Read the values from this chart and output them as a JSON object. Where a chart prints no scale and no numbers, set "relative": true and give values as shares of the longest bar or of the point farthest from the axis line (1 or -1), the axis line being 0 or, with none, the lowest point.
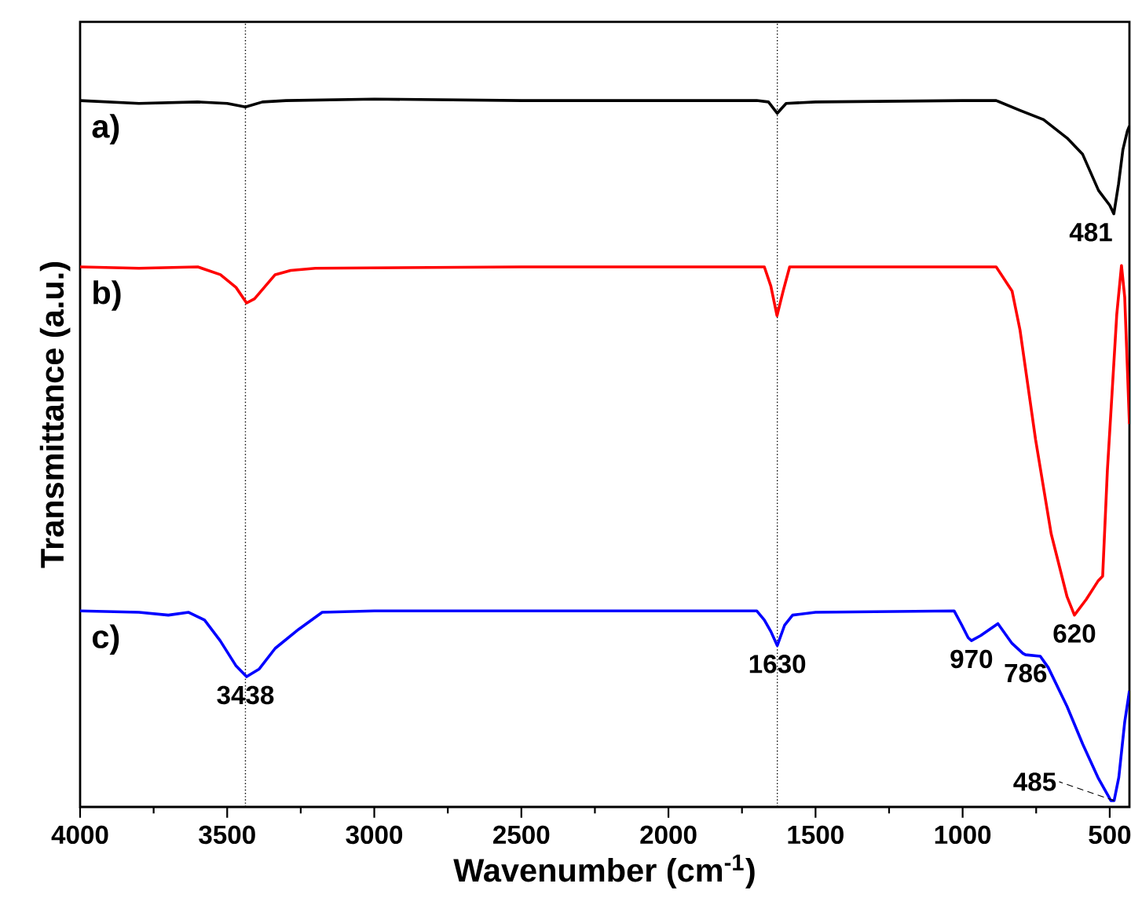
{
  "chart_data": {
    "type": "line",
    "relative": true,
    "xlabel": "Wavenumber (cm$^{-1}$)",
    "ylabel": "Transmittance (a.u.)",
    "xlim": [
      4000,
      433
    ],
    "xticks": [
      4000,
      {
        "value": 3750,
        "label": null
      },
      3500,
      {
        "value": 3250,
        "label": null
      },
      3000,
      {
        "value": 2750,
        "label": null
      },
      2500,
      {
        "value": 2250,
        "label": null
      },
      2000,
      {
        "value": 1750,
        "label": null
      },
      1500,
      {
        "value": 1250,
        "label": null
      },
      1000,
      {
        "value": 750,
        "label": null
      },
      500
    ],
    "legend": false,
    "series": [
      {
        "name": "a)",
        "color": "#000000",
        "x": [
          4000,
          3800,
          3600,
          3500,
          3438,
          3380,
          3300,
          3000,
          2500,
          2000,
          1700,
          1660,
          1630,
          1600,
          1500,
          1000,
          886,
          805,
          725,
          645,
          592,
          538,
          500,
          486,
          470,
          455,
          440,
          433
        ],
        "values": [
          0.998,
          0.994,
          0.996,
          0.994,
          0.989,
          0.996,
          0.998,
          1.0,
          0.998,
          0.998,
          0.998,
          0.996,
          0.98,
          0.994,
          0.996,
          0.998,
          0.998,
          0.984,
          0.971,
          0.945,
          0.922,
          0.871,
          0.85,
          0.838,
          0.88,
          0.929,
          0.955,
          0.962
        ]
      },
      {
        "name": "b)",
        "color": "#ff0000",
        "x": [
          4000,
          3800,
          3600,
          3523,
          3470,
          3434,
          3407,
          3337,
          3284,
          3200,
          2500,
          2000,
          1700,
          1674,
          1652,
          1631,
          1610,
          1588,
          1500,
          1000,
          886,
          832,
          805,
          752,
          699,
          645,
          620,
          580,
          540,
          524,
          508,
          492,
          476,
          460,
          449,
          440,
          433
        ],
        "values": [
          0.763,
          0.761,
          0.763,
          0.752,
          0.734,
          0.712,
          0.718,
          0.752,
          0.758,
          0.761,
          0.763,
          0.763,
          0.763,
          0.763,
          0.736,
          0.694,
          0.729,
          0.763,
          0.763,
          0.763,
          0.763,
          0.729,
          0.674,
          0.519,
          0.386,
          0.297,
          0.271,
          0.293,
          0.319,
          0.326,
          0.475,
          0.585,
          0.696,
          0.765,
          0.72,
          0.62,
          0.541
        ]
      },
      {
        "name": "c)",
        "color": "#0000ff",
        "x": [
          4000,
          3800,
          3700,
          3631,
          3577,
          3524,
          3471,
          3434,
          3391,
          3337,
          3257,
          3177,
          3000,
          2000,
          1700,
          1674,
          1652,
          1630,
          1605,
          1578,
          1500,
          1029,
          1003,
          981,
          970,
          939,
          880,
          832,
          795,
          786,
          736,
          709,
          645,
          592,
          538,
          496,
          485,
          469,
          449,
          433
        ],
        "values": [
          0.277,
          0.275,
          0.271,
          0.275,
          0.264,
          0.235,
          0.2,
          0.184,
          0.195,
          0.224,
          0.251,
          0.275,
          0.277,
          0.277,
          0.277,
          0.264,
          0.248,
          0.228,
          0.257,
          0.271,
          0.275,
          0.277,
          0.257,
          0.239,
          0.235,
          0.242,
          0.259,
          0.231,
          0.217,
          0.215,
          0.213,
          0.197,
          0.142,
          0.089,
          0.04,
          0.009,
          0.009,
          0.042,
          0.12,
          0.164
        ]
      }
    ],
    "ref_lines": [
      {
        "axis": "x",
        "value": 3438,
        "color": "#000000",
        "line_style": "dotted"
      },
      {
        "axis": "x",
        "value": 1630,
        "color": "#000000",
        "line_style": "dotted"
      }
    ],
    "annotations": [
      {
        "text": "481",
        "x": 481,
        "y": 0.838
      },
      {
        "text": "620",
        "x": 620,
        "y": 0.271
      },
      {
        "text": "3438",
        "x": 3438,
        "y": 0.184
      },
      {
        "text": "1630",
        "x": 1630,
        "y": 0.228
      },
      {
        "text": "970",
        "x": 970,
        "y": 0.235
      },
      {
        "text": "786",
        "x": 786,
        "y": 0.215
      },
      {
        "text": "485",
        "x": 485,
        "y": 0.009
      }
    ]
  }
}
